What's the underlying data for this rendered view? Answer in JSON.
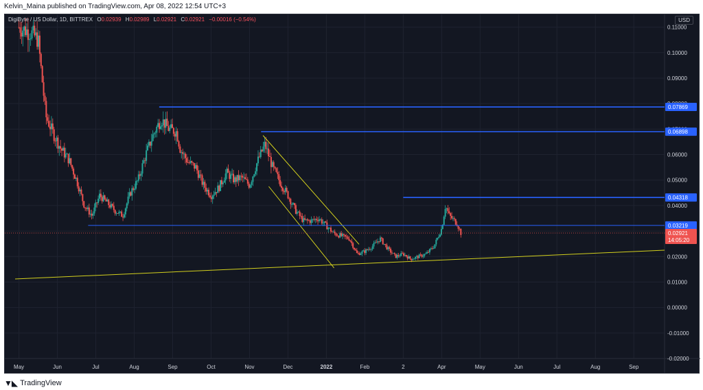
{
  "publisher_line": "Kelvin_Maina published on TradingView.com, Apr 08, 2022 12:54 UTC+3",
  "legend": {
    "symbol": "DigiByte / US Dollar, 1D, BITTREX",
    "o_label": "O",
    "o_val": "0.02939",
    "h_label": "H",
    "h_val": "0.02989",
    "l_label": "L",
    "l_val": "0.02921",
    "c_label": "C",
    "c_val": "0.02921",
    "change": "−0.00016 (−0.54%)"
  },
  "currency": "USD",
  "footer_brand": "TradingView",
  "colors": {
    "background": "#131722",
    "bull": "#26a69a",
    "bear": "#ef5350",
    "level_line": "#2962ff",
    "trend_line": "#d4d11d",
    "axis_text": "#d1d4dc"
  },
  "chart_data": {
    "type": "candlestick",
    "y_range": [
      -0.02,
      0.115
    ],
    "y_ticks": [
      {
        "value": 0.11,
        "label": "0.11000"
      },
      {
        "value": 0.1,
        "label": "0.10000"
      },
      {
        "value": 0.09,
        "label": "0.09000"
      },
      {
        "value": 0.08,
        "label": "0.08000"
      },
      {
        "value": 0.07,
        "label": "0.07000"
      },
      {
        "value": 0.06,
        "label": "0.06000"
      },
      {
        "value": 0.05,
        "label": "0.05000"
      },
      {
        "value": 0.04,
        "label": "0.04000"
      },
      {
        "value": 0.03,
        "label": "0.03000"
      },
      {
        "value": 0.02,
        "label": "0.02000"
      },
      {
        "value": 0.01,
        "label": "0.01000"
      },
      {
        "value": 0.0,
        "label": "0.00000"
      },
      {
        "value": -0.01,
        "label": "-0.01000"
      },
      {
        "value": -0.02,
        "label": "-0.02000"
      }
    ],
    "x_ticks": [
      {
        "t": 0,
        "label": "May"
      },
      {
        "t": 1,
        "label": "Jun"
      },
      {
        "t": 2,
        "label": "Jul"
      },
      {
        "t": 3,
        "label": "Aug"
      },
      {
        "t": 4,
        "label": "Sep"
      },
      {
        "t": 5,
        "label": "Oct"
      },
      {
        "t": 6,
        "label": "Nov"
      },
      {
        "t": 7,
        "label": "Dec"
      },
      {
        "t": 8,
        "label": "2022"
      },
      {
        "t": 9,
        "label": "Feb"
      },
      {
        "t": 10,
        "label": "2"
      },
      {
        "t": 11,
        "label": "Apr"
      },
      {
        "t": 12,
        "label": "May"
      },
      {
        "t": 13,
        "label": "Jun"
      },
      {
        "t": 14,
        "label": "Jul"
      },
      {
        "t": 15,
        "label": "Aug"
      },
      {
        "t": 16,
        "label": "Sep"
      }
    ],
    "price_path": [
      [
        0.0,
        0.11
      ],
      [
        0.3,
        0.108
      ],
      [
        0.5,
        0.105
      ],
      [
        0.7,
        0.075
      ],
      [
        0.9,
        0.068
      ],
      [
        1.1,
        0.062
      ],
      [
        1.3,
        0.058
      ],
      [
        1.5,
        0.05
      ],
      [
        1.7,
        0.04
      ],
      [
        1.9,
        0.036
      ],
      [
        2.1,
        0.044
      ],
      [
        2.3,
        0.041
      ],
      [
        2.5,
        0.038
      ],
      [
        2.7,
        0.036
      ],
      [
        2.9,
        0.045
      ],
      [
        3.1,
        0.05
      ],
      [
        3.3,
        0.06
      ],
      [
        3.5,
        0.068
      ],
      [
        3.7,
        0.074
      ],
      [
        3.9,
        0.07
      ],
      [
        4.1,
        0.069
      ],
      [
        4.2,
        0.062
      ],
      [
        4.4,
        0.057
      ],
      [
        4.6,
        0.055
      ],
      [
        4.8,
        0.048
      ],
      [
        5.0,
        0.044
      ],
      [
        5.2,
        0.047
      ],
      [
        5.4,
        0.053
      ],
      [
        5.6,
        0.05
      ],
      [
        5.8,
        0.051
      ],
      [
        6.0,
        0.048
      ],
      [
        6.2,
        0.057
      ],
      [
        6.4,
        0.064
      ],
      [
        6.6,
        0.055
      ],
      [
        6.8,
        0.049
      ],
      [
        7.0,
        0.044
      ],
      [
        7.2,
        0.038
      ],
      [
        7.4,
        0.034
      ],
      [
        7.6,
        0.034
      ],
      [
        7.8,
        0.035
      ],
      [
        8.0,
        0.032
      ],
      [
        8.2,
        0.029
      ],
      [
        8.4,
        0.028
      ],
      [
        8.6,
        0.027
      ],
      [
        8.8,
        0.021
      ],
      [
        9.0,
        0.022
      ],
      [
        9.2,
        0.024
      ],
      [
        9.4,
        0.027
      ],
      [
        9.6,
        0.023
      ],
      [
        9.8,
        0.02
      ],
      [
        10.0,
        0.021
      ],
      [
        10.2,
        0.019
      ],
      [
        10.4,
        0.02
      ],
      [
        10.6,
        0.021
      ],
      [
        10.8,
        0.024
      ],
      [
        11.0,
        0.031
      ],
      [
        11.1,
        0.04
      ],
      [
        11.2,
        0.036
      ],
      [
        11.4,
        0.033
      ],
      [
        11.5,
        0.0292
      ]
    ],
    "horizontal_levels": [
      {
        "value": 0.07869,
        "label": "0.07869",
        "t_start": 3.65
      },
      {
        "value": 0.06898,
        "label": "0.06898",
        "t_start": 6.3
      },
      {
        "value": 0.04318,
        "label": "0.04318",
        "t_start": 10.0
      },
      {
        "value": 0.03219,
        "label": "0.03219",
        "t_start": 1.8
      }
    ],
    "current_price": {
      "value": 0.02921,
      "label": "0.02921",
      "countdown": "14:05:20"
    },
    "trend_lines": [
      {
        "t1": -0.1,
        "v1": 0.0112,
        "t2": 16.8,
        "v2": 0.0225
      },
      {
        "t1": 6.35,
        "v1": 0.0675,
        "t2": 8.85,
        "v2": 0.0248
      },
      {
        "t1": 6.5,
        "v1": 0.0475,
        "t2": 8.2,
        "v2": 0.0155
      }
    ]
  }
}
